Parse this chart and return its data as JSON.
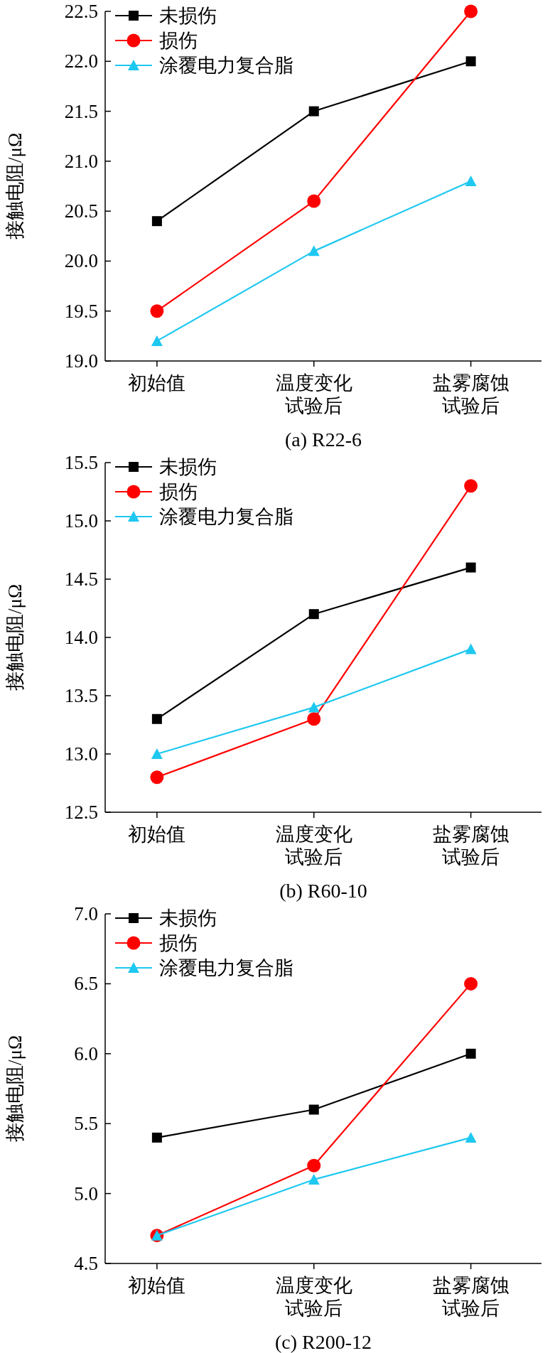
{
  "chart_data": [
    {
      "type": "line",
      "title": "(a) R22-6",
      "ylabel": "接触电阻/μΩ",
      "categories": [
        "初始值",
        "温度变化试验后",
        "盐雾腐蚀试验后"
      ],
      "legend": "top left",
      "series": [
        {
          "name": "未损伤",
          "color": "#000000",
          "marker": "square",
          "values": [
            20.4,
            21.5,
            22.0
          ]
        },
        {
          "name": "损伤",
          "color": "#ff0000",
          "marker": "circle",
          "values": [
            19.5,
            20.6,
            22.5
          ]
        },
        {
          "name": "涂覆电力复合脂",
          "color": "#1ec8f0",
          "marker": "triangle",
          "values": [
            19.2,
            20.1,
            20.8
          ]
        }
      ],
      "ylim": [
        19.0,
        22.5
      ],
      "yticks": [
        {
          "value": 19,
          "label": "19.0"
        },
        19.5,
        {
          "value": 20,
          "label": "20.0"
        },
        20.5,
        {
          "value": 21,
          "label": "21.0"
        },
        21.5,
        {
          "value": 22,
          "label": "22.0"
        },
        22.5
      ]
    },
    {
      "type": "line",
      "title": "(b) R60-10",
      "ylabel": "接触电阻/μΩ",
      "categories": [
        "初始值",
        "温度变化试验后",
        "盐雾腐蚀试验后"
      ],
      "legend": "top left",
      "series": [
        {
          "name": "未损伤",
          "color": "#000000",
          "marker": "square",
          "values": [
            13.3,
            14.2,
            14.6
          ]
        },
        {
          "name": "损伤",
          "color": "#ff0000",
          "marker": "circle",
          "values": [
            12.8,
            13.3,
            15.3
          ]
        },
        {
          "name": "涂覆电力复合脂",
          "color": "#1ec8f0",
          "marker": "triangle",
          "values": [
            13.0,
            13.4,
            13.9
          ]
        }
      ],
      "ylim": [
        12.5,
        15.5
      ],
      "yticks": [
        12.5,
        {
          "value": 13,
          "label": "13.0"
        },
        13.5,
        {
          "value": 14,
          "label": "14.0"
        },
        14.5,
        {
          "value": 15,
          "label": "15.0"
        },
        15.5
      ]
    },
    {
      "type": "line",
      "title": "(c) R200-12",
      "ylabel": "接触电阻/μΩ",
      "categories": [
        "初始值",
        "温度变化试验后",
        "盐雾腐蚀试验后"
      ],
      "legend": "top left",
      "series": [
        {
          "name": "未损伤",
          "color": "#000000",
          "marker": "square",
          "values": [
            5.4,
            5.6,
            6.0
          ]
        },
        {
          "name": "损伤",
          "color": "#ff0000",
          "marker": "circle",
          "values": [
            4.7,
            5.2,
            6.5
          ]
        },
        {
          "name": "涂覆电力复合脂",
          "color": "#1ec8f0",
          "marker": "triangle",
          "values": [
            4.7,
            5.1,
            5.4
          ]
        }
      ],
      "ylim": [
        4.5,
        7.0
      ],
      "yticks": [
        4.5,
        {
          "value": 5,
          "label": "5.0"
        },
        5.5,
        {
          "value": 6,
          "label": "6.0"
        },
        6.5,
        {
          "value": 7,
          "label": "7.0"
        }
      ]
    }
  ]
}
